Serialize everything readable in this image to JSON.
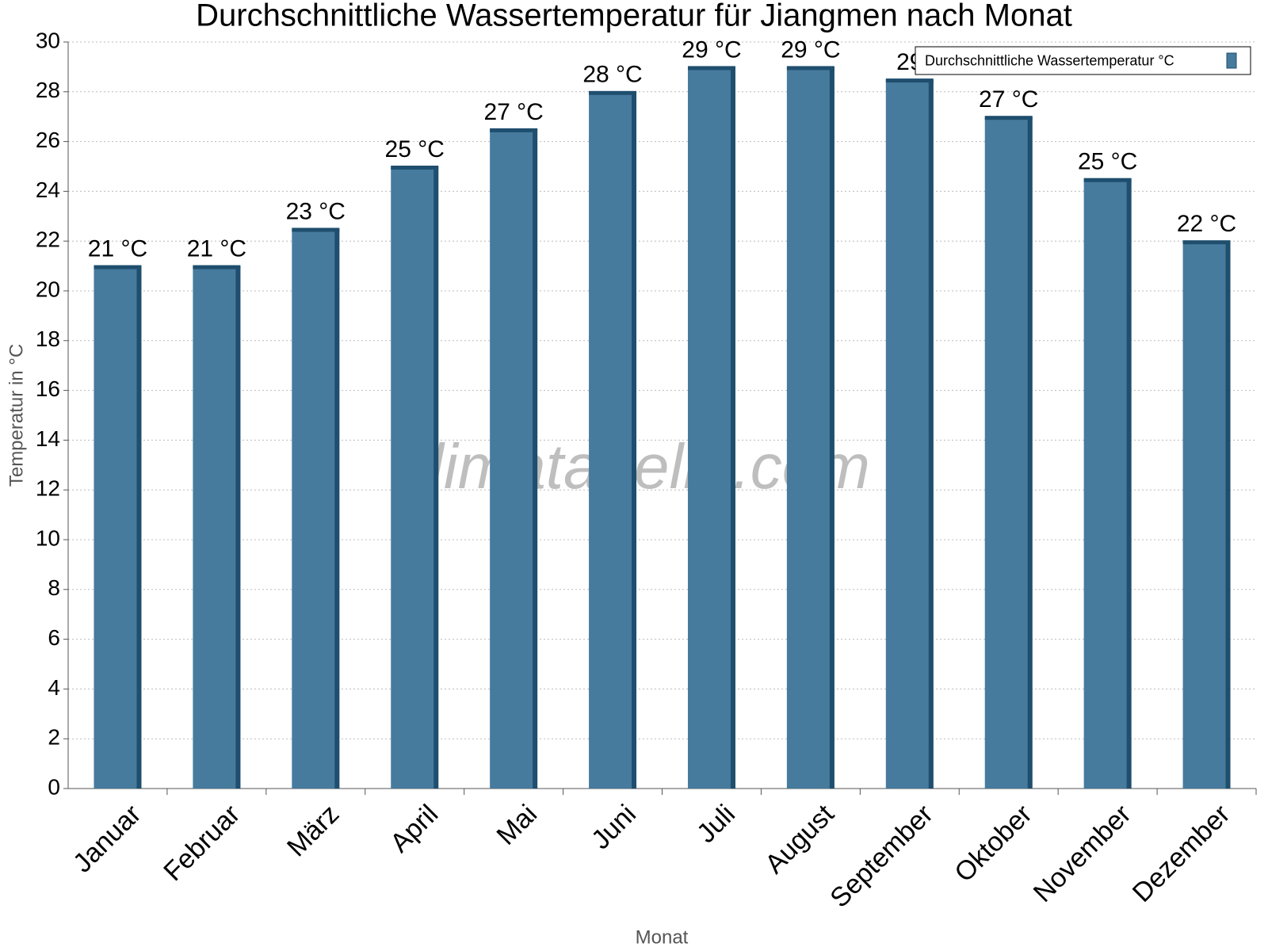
{
  "chart_data": {
    "type": "bar",
    "title": "Durchschnittliche Wassertemperatur für Jiangmen nach Monat",
    "x_label": "Monat",
    "y_label": "Temperatur in °C",
    "watermark": "klimatabelle.com",
    "categories": [
      "Januar",
      "Februar",
      "März",
      "April",
      "Mai",
      "Juni",
      "Juli",
      "August",
      "September",
      "Oktober",
      "November",
      "Dezember"
    ],
    "series": [
      {
        "name": "Durchschnittliche Wassertemperatur °C",
        "color": "#467b9e",
        "values": [
          21,
          21,
          22.5,
          25,
          26.5,
          28,
          29,
          29,
          28.5,
          27,
          24.5,
          22
        ],
        "value_labels": [
          "21 °C",
          "21 °C",
          "23 °C",
          "25 °C",
          "27 °C",
          "28 °C",
          "29 °C",
          "29 °C",
          "29",
          "27 °C",
          "25 °C",
          "22 °C"
        ]
      }
    ],
    "ylim": [
      0,
      30
    ],
    "yticks": [
      0,
      2,
      4,
      6,
      8,
      10,
      12,
      14,
      16,
      18,
      20,
      22,
      24,
      26,
      28,
      30
    ],
    "grid": true,
    "legend": "top-right"
  }
}
